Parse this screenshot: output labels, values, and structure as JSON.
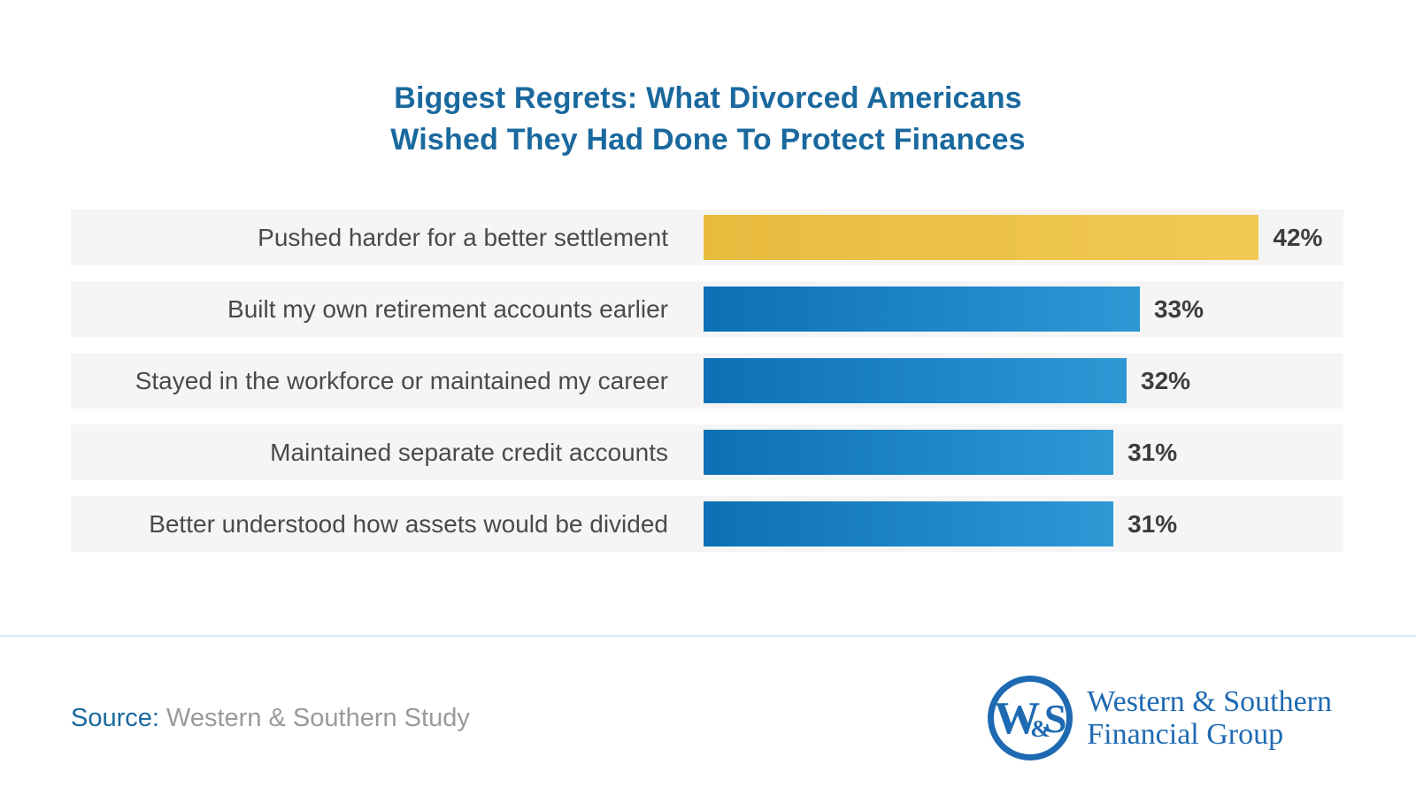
{
  "title": {
    "line1": "Biggest Regrets: What Divorced Americans",
    "line2": "Wished They Had Done To Protect Finances"
  },
  "chart_data": {
    "type": "bar",
    "orientation": "horizontal",
    "title": "Biggest Regrets: What Divorced Americans Wished They Had Done To Protect Finances",
    "categories": [
      "Pushed harder for a better settlement",
      "Built my own retirement accounts earlier",
      "Stayed in the workforce or maintained my career",
      "Maintained separate credit accounts",
      "Better understood how assets would be divided"
    ],
    "values": [
      42,
      33,
      32,
      31,
      31
    ],
    "value_labels": [
      "42%",
      "33%",
      "32%",
      "31%",
      "31%"
    ],
    "unit": "percent",
    "xlim": [
      0,
      48.4
    ],
    "grid": false,
    "legend": false,
    "highlight_index": 0,
    "colors": {
      "highlight_bar_start": "#e8bb3e",
      "highlight_bar_end": "#f0c954",
      "bar_start": "#0c70b5",
      "bar_end": "#2e98d5",
      "row_background": "#f5f5f6",
      "label_text": "#4a4a4a",
      "value_text": "#3d3d3d",
      "title_text": "#1a699e"
    }
  },
  "footer": {
    "source_label": "Source:",
    "source_text": "Western & Southern Study",
    "logo": {
      "monogram_w": "W",
      "monogram_amp": "&",
      "monogram_s": "S",
      "name_line1": "Western & Southern",
      "name_line2": "Financial Group",
      "brand_color": "#1e6ab2"
    }
  }
}
